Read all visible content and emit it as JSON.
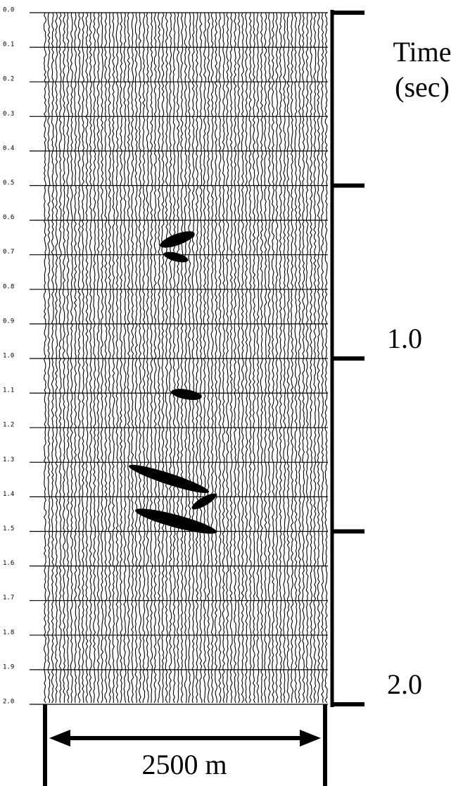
{
  "chart_data": {
    "type": "seismic",
    "x_label": "2500 m",
    "y_label_lines": [
      "Time",
      "(sec)"
    ],
    "ylim": [
      0,
      2
    ],
    "yticks": [
      {
        "value": 0,
        "label": "0.0"
      },
      {
        "value": 0.1,
        "label": "0.1"
      },
      {
        "value": 0.2,
        "label": "0.2"
      },
      {
        "value": 0.3,
        "label": "0.3"
      },
      {
        "value": 0.4,
        "label": "0.4"
      },
      {
        "value": 0.5,
        "label": "0.5"
      },
      {
        "value": 0.6,
        "label": "0.6"
      },
      {
        "value": 0.7,
        "label": "0.7"
      },
      {
        "value": 0.8,
        "label": "0.8"
      },
      {
        "value": 0.9,
        "label": "0.9"
      },
      {
        "value": 1,
        "label": "1.0"
      },
      {
        "value": 1.1,
        "label": "1.1"
      },
      {
        "value": 1.2,
        "label": "1.2"
      },
      {
        "value": 1.3,
        "label": "1.3"
      },
      {
        "value": 1.4,
        "label": "1.4"
      },
      {
        "value": 1.5,
        "label": "1.5"
      },
      {
        "value": 1.6,
        "label": "1.6"
      },
      {
        "value": 1.7,
        "label": "1.7"
      },
      {
        "value": 1.8,
        "label": "1.8"
      },
      {
        "value": 1.9,
        "label": "1.9"
      },
      {
        "value": 2,
        "label": "2.0"
      }
    ],
    "y2lim": [
      0,
      2
    ],
    "y2ticks": [
      {
        "value": 1,
        "label": "1.0"
      },
      {
        "value": 2,
        "label": "2.0"
      }
    ],
    "major_ticks": [
      0,
      0.5,
      1,
      1.5,
      2
    ],
    "grid": true
  }
}
